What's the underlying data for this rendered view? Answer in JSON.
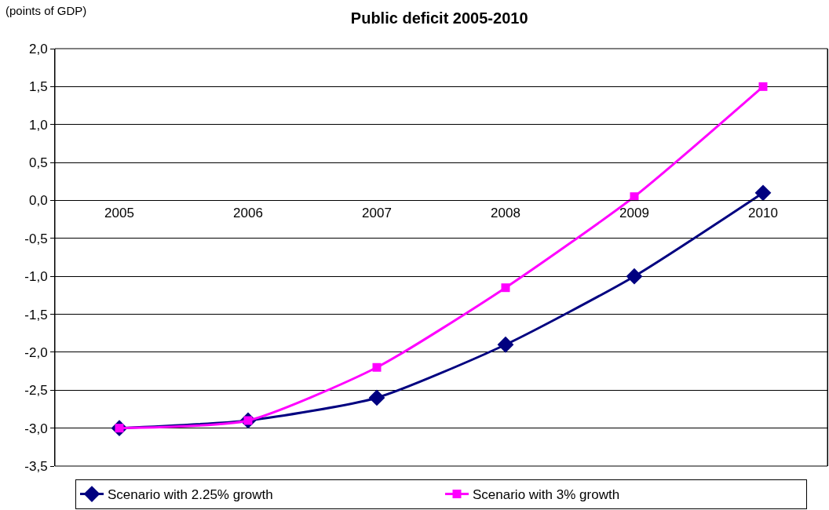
{
  "chart_data": {
    "type": "line",
    "title": "Public deficit 2005-2010",
    "ylabel": "(points of GDP)",
    "categories": [
      "2005",
      "2006",
      "2007",
      "2008",
      "2009",
      "2010"
    ],
    "series": [
      {
        "name": "Scenario with 2.25% growth",
        "color": "#000080",
        "marker": "diamond",
        "values": [
          -3.0,
          -2.9,
          -2.6,
          -1.9,
          -1.0,
          0.1
        ]
      },
      {
        "name": "Scenario with 3% growth",
        "color": "#ff00ff",
        "marker": "square",
        "values": [
          -3.0,
          -2.9,
          -2.2,
          -1.15,
          0.05,
          1.5
        ]
      }
    ],
    "ylim": [
      -3.5,
      2.0
    ],
    "yticks": [
      {
        "value": -3.5,
        "label": "-3,5"
      },
      {
        "value": -3.0,
        "label": "-3,0"
      },
      {
        "value": -2.5,
        "label": "-2,5"
      },
      {
        "value": -2.0,
        "label": "-2,0"
      },
      {
        "value": -1.5,
        "label": "-1,5"
      },
      {
        "value": -1.0,
        "label": "-1,0"
      },
      {
        "value": -0.5,
        "label": "-0,5"
      },
      {
        "value": 0.0,
        "label": "0,0"
      },
      {
        "value": 0.5,
        "label": "0,5"
      },
      {
        "value": 1.0,
        "label": "1,0"
      },
      {
        "value": 1.5,
        "label": "1,5"
      },
      {
        "value": 2.0,
        "label": "2,0"
      }
    ],
    "grid": "y",
    "legend": "bottom"
  }
}
